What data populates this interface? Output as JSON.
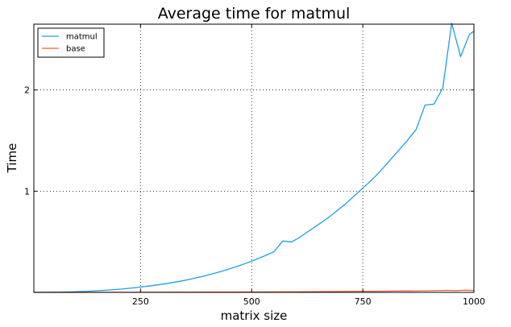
{
  "chart_data": {
    "type": "line",
    "title": "Average time for matmul",
    "xlabel": "matrix size",
    "ylabel": "Time",
    "xlim": [
      10,
      1000
    ],
    "ylim": [
      0,
      2.65
    ],
    "xticks": [
      250,
      500,
      750,
      1000
    ],
    "xtick_labels": [
      "250",
      "500",
      "750",
      "1000"
    ],
    "yticks": [
      1,
      2
    ],
    "ytick_labels": [
      "1",
      "2"
    ],
    "grid": true,
    "legend_position": "top-left",
    "series": [
      {
        "name": "matmul",
        "color": "#1f9ee8",
        "x": [
          10,
          30,
          50,
          70,
          90,
          110,
          130,
          150,
          170,
          190,
          210,
          230,
          250,
          270,
          290,
          310,
          330,
          350,
          370,
          390,
          410,
          430,
          450,
          470,
          490,
          510,
          530,
          550,
          570,
          590,
          610,
          630,
          650,
          670,
          690,
          710,
          730,
          750,
          770,
          790,
          810,
          830,
          850,
          870,
          890,
          910,
          930,
          950,
          970,
          990,
          1000
        ],
        "y": [
          0.0,
          0.001,
          0.002,
          0.003,
          0.005,
          0.008,
          0.011,
          0.016,
          0.021,
          0.027,
          0.034,
          0.043,
          0.053,
          0.063,
          0.075,
          0.088,
          0.103,
          0.119,
          0.138,
          0.158,
          0.181,
          0.205,
          0.232,
          0.261,
          0.292,
          0.326,
          0.362,
          0.401,
          0.507,
          0.498,
          0.55,
          0.61,
          0.67,
          0.73,
          0.8,
          0.87,
          0.95,
          1.03,
          1.11,
          1.2,
          1.3,
          1.4,
          1.5,
          1.61,
          1.85,
          1.86,
          2.02,
          2.66,
          2.33,
          2.55,
          2.58
        ]
      },
      {
        "name": "base",
        "color": "#e8603c",
        "x": [
          10,
          100,
          200,
          300,
          400,
          500,
          600,
          700,
          800,
          900,
          940,
          960,
          980,
          1000
        ],
        "y": [
          0.0,
          0.0005,
          0.001,
          0.002,
          0.003,
          0.004,
          0.006,
          0.009,
          0.012,
          0.016,
          0.02,
          0.017,
          0.022,
          0.019
        ]
      }
    ]
  }
}
